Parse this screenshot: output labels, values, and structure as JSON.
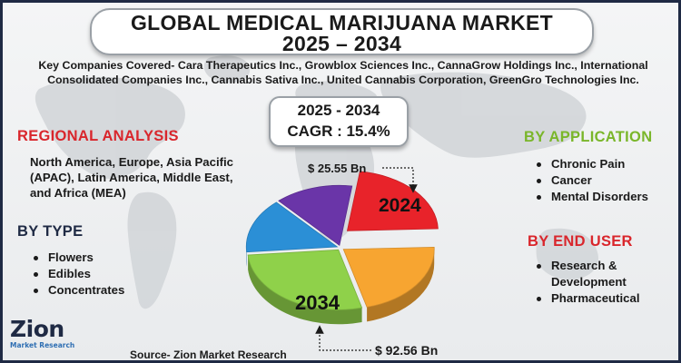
{
  "header": {
    "title_line1": "GLOBAL MEDICAL MARIJUANA MARKET",
    "title_line2": "2025 – 2034",
    "subtitle_line1": "Key Companies Covered- Cara Therapeutics Inc., Growblox Sciences Inc., CannaGrow Holdings Inc., International",
    "subtitle_line2": "Consolidated Companies Inc., Cannabis Sativa Inc., United Cannabis Corporation, GreenGro Technologies Inc."
  },
  "cagr": {
    "years": "2025 - 2034",
    "value": "CAGR : 15.4%"
  },
  "regional": {
    "heading": "REGIONAL ANALYSIS",
    "text": "North America, Europe, Asia Pacific (APAC), Latin America, Middle East, and Africa (MEA)"
  },
  "by_type": {
    "heading": "BY TYPE",
    "items": [
      "Flowers",
      "Edibles",
      "Concentrates"
    ]
  },
  "by_application": {
    "heading": "BY APPLICATION",
    "items": [
      "Chronic Pain",
      "Cancer",
      "Mental Disorders"
    ]
  },
  "by_end_user": {
    "heading": "BY END USER",
    "items": [
      "Research & Development",
      "Pharmaceutical"
    ]
  },
  "source": "Source- Zion Market Research",
  "logo": {
    "main": "Zion",
    "sub": "Market Research"
  },
  "colors": {
    "red": "#e8232a",
    "orange": "#f7a531",
    "green": "#8fd14a",
    "blue": "#2b8fd6",
    "purple": "#6a35a8",
    "navy": "#1f2a44",
    "accent_red": "#d9262c",
    "accent_green": "#7ab62a"
  },
  "chart_data": {
    "type": "pie",
    "title": "",
    "values": [
      25.55,
      92.56
    ],
    "labels": [
      "2024",
      "2034"
    ],
    "value_labels": [
      "$ 25.55 Bn",
      "$ 92.56 Bn"
    ],
    "unit": "USD Bn",
    "style": "3d-exploded"
  }
}
